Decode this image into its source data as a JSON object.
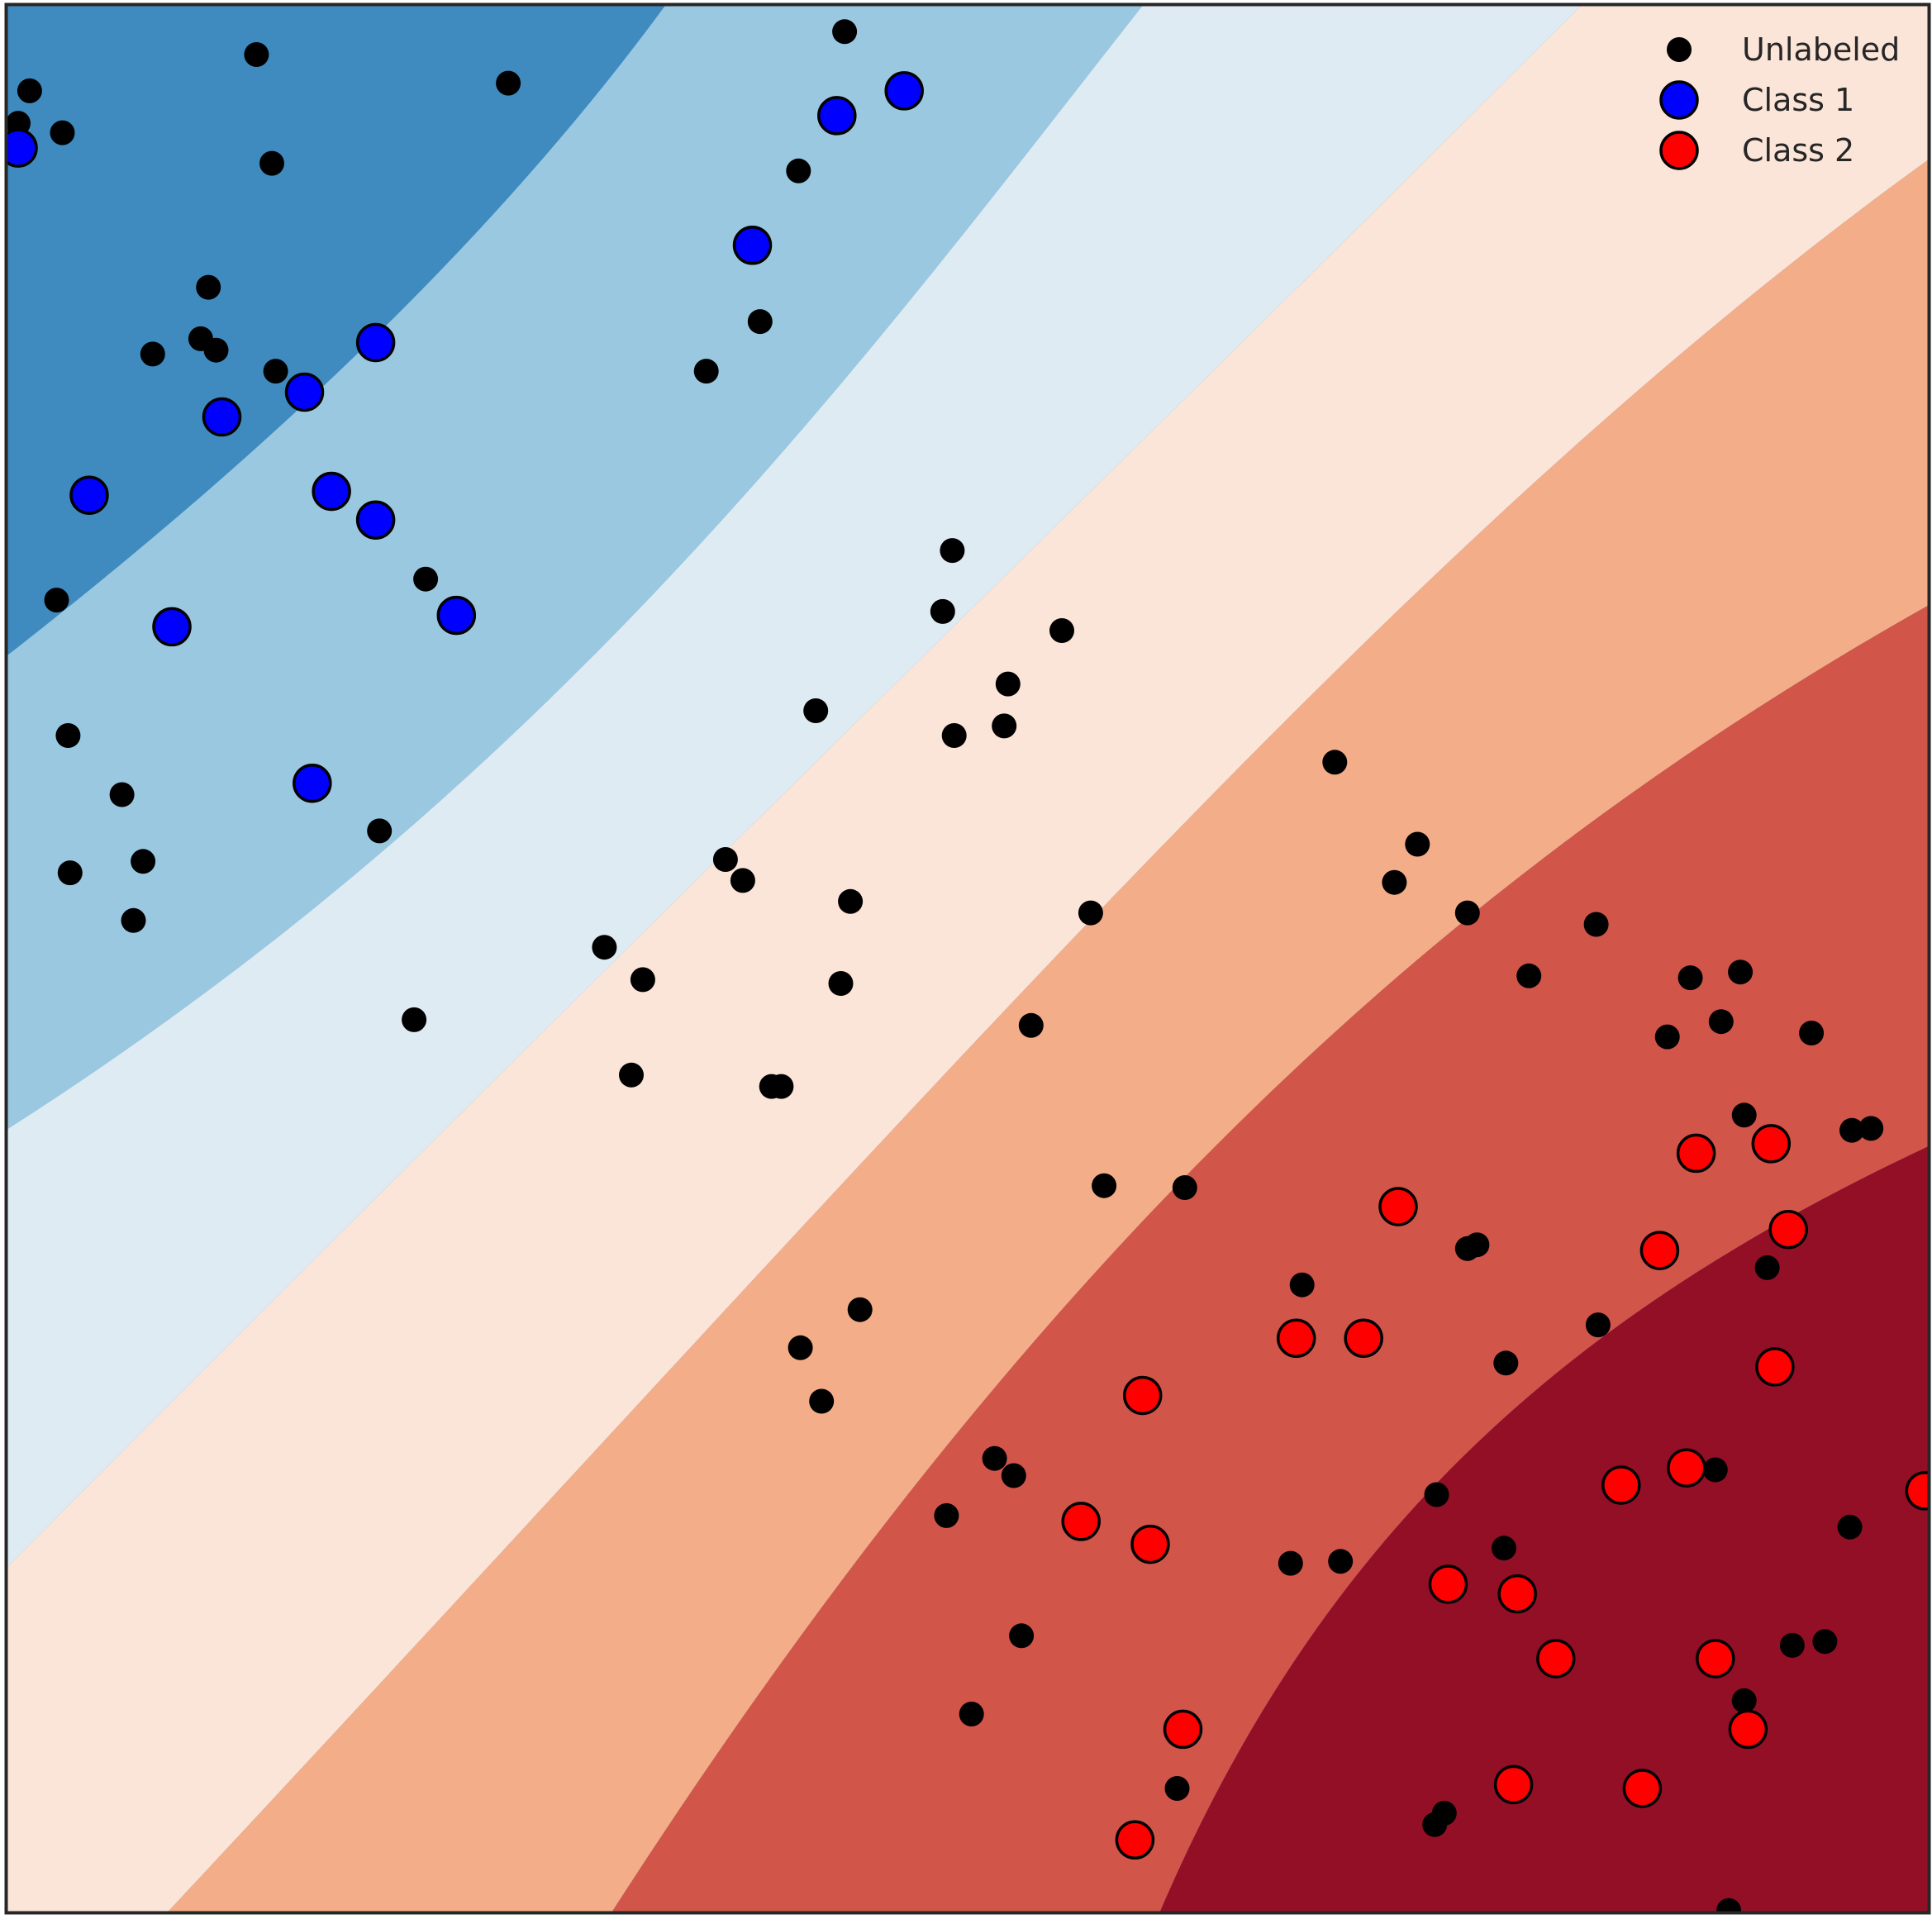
{
  "chart_data": {
    "type": "scatter",
    "title": "",
    "xlabel": "",
    "ylabel": "",
    "xlim": [
      0,
      1
    ],
    "ylim": [
      0,
      1
    ],
    "grid": false,
    "axis_ticks": false,
    "legend": {
      "placement": "top-right",
      "entries": [
        {
          "label": "Unlabeled",
          "series": "unlabeled"
        },
        {
          "label": "Class 1",
          "series": "class1"
        },
        {
          "label": "Class 2",
          "series": "class2"
        }
      ]
    },
    "background": {
      "type": "filled-contour",
      "description_levels": 6,
      "colors": [
        "#3f8bc0",
        "#9ac8e0",
        "#deebf3",
        "#fbe4d8",
        "#f4ad89",
        "#d2554a",
        "#930f26"
      ]
    },
    "series": [
      {
        "key": "unlabeled",
        "name": "Unlabeled",
        "color": "#000000",
        "points": [
          [
            0.436,
            0.986
          ],
          [
            0.13,
            0.974
          ],
          [
            0.261,
            0.959
          ],
          [
            0.012,
            0.955
          ],
          [
            0.006,
            0.938
          ],
          [
            0.029,
            0.933
          ],
          [
            0.138,
            0.917
          ],
          [
            0.412,
            0.913
          ],
          [
            0.105,
            0.852
          ],
          [
            0.392,
            0.834
          ],
          [
            0.101,
            0.825
          ],
          [
            0.109,
            0.819
          ],
          [
            0.076,
            0.817
          ],
          [
            0.14,
            0.808
          ],
          [
            0.364,
            0.808
          ],
          [
            0.492,
            0.714
          ],
          [
            0.218,
            0.699
          ],
          [
            0.026,
            0.688
          ],
          [
            0.487,
            0.682
          ],
          [
            0.549,
            0.672
          ],
          [
            0.521,
            0.644
          ],
          [
            0.421,
            0.63
          ],
          [
            0.493,
            0.617
          ],
          [
            0.032,
            0.617
          ],
          [
            0.519,
            0.622
          ],
          [
            0.06,
            0.586
          ],
          [
            0.194,
            0.567
          ],
          [
            0.071,
            0.551
          ],
          [
            0.033,
            0.545
          ],
          [
            0.374,
            0.552
          ],
          [
            0.383,
            0.541
          ],
          [
            0.439,
            0.53
          ],
          [
            0.066,
            0.52
          ],
          [
            0.691,
            0.603
          ],
          [
            0.734,
            0.56
          ],
          [
            0.722,
            0.54
          ],
          [
            0.564,
            0.524
          ],
          [
            0.76,
            0.524
          ],
          [
            0.827,
            0.518
          ],
          [
            0.311,
            0.506
          ],
          [
            0.331,
            0.489
          ],
          [
            0.434,
            0.487
          ],
          [
            0.212,
            0.468
          ],
          [
            0.792,
            0.491
          ],
          [
            0.876,
            0.49
          ],
          [
            0.902,
            0.493
          ],
          [
            0.864,
            0.459
          ],
          [
            0.892,
            0.467
          ],
          [
            0.939,
            0.461
          ],
          [
            0.533,
            0.465
          ],
          [
            0.325,
            0.439
          ],
          [
            0.398,
            0.433
          ],
          [
            0.403,
            0.433
          ],
          [
            0.904,
            0.418
          ],
          [
            0.96,
            0.41
          ],
          [
            0.97,
            0.411
          ],
          [
            0.571,
            0.381
          ],
          [
            0.613,
            0.38
          ],
          [
            0.76,
            0.348
          ],
          [
            0.765,
            0.35
          ],
          [
            0.674,
            0.329
          ],
          [
            0.916,
            0.338
          ],
          [
            0.444,
            0.316
          ],
          [
            0.828,
            0.308
          ],
          [
            0.413,
            0.296
          ],
          [
            0.78,
            0.288
          ],
          [
            0.424,
            0.268
          ],
          [
            0.514,
            0.238
          ],
          [
            0.524,
            0.229
          ],
          [
            0.889,
            0.232
          ],
          [
            0.744,
            0.219
          ],
          [
            0.489,
            0.208
          ],
          [
            0.959,
            0.202
          ],
          [
            0.779,
            0.191
          ],
          [
            0.668,
            0.183
          ],
          [
            0.694,
            0.184
          ],
          [
            0.528,
            0.145
          ],
          [
            0.929,
            0.14
          ],
          [
            0.946,
            0.142
          ],
          [
            0.904,
            0.111
          ],
          [
            0.502,
            0.104
          ],
          [
            0.609,
            0.065
          ],
          [
            0.748,
            0.052
          ],
          [
            0.743,
            0.046
          ],
          [
            0.896,
            0.001
          ]
        ]
      },
      {
        "key": "class1",
        "name": "Class 1",
        "color": "#0000ff",
        "points": [
          [
            0.467,
            0.955
          ],
          [
            0.432,
            0.942
          ],
          [
            0.388,
            0.874
          ],
          [
            0.006,
            0.925
          ],
          [
            0.192,
            0.823
          ],
          [
            0.155,
            0.797
          ],
          [
            0.112,
            0.784
          ],
          [
            0.043,
            0.743
          ],
          [
            0.169,
            0.745
          ],
          [
            0.192,
            0.73
          ],
          [
            0.234,
            0.68
          ],
          [
            0.086,
            0.674
          ],
          [
            0.159,
            0.592
          ]
        ]
      },
      {
        "key": "class2",
        "name": "Class 2",
        "color": "#ff0000",
        "points": [
          [
            0.879,
            0.398
          ],
          [
            0.918,
            0.403
          ],
          [
            0.724,
            0.37
          ],
          [
            0.86,
            0.347
          ],
          [
            0.927,
            0.358
          ],
          [
            0.671,
            0.301
          ],
          [
            0.706,
            0.301
          ],
          [
            0.92,
            0.286
          ],
          [
            0.591,
            0.271
          ],
          [
            0.84,
            0.224
          ],
          [
            0.874,
            0.233
          ],
          [
            0.998,
            0.221
          ],
          [
            0.559,
            0.205
          ],
          [
            0.595,
            0.193
          ],
          [
            0.75,
            0.172
          ],
          [
            0.786,
            0.167
          ],
          [
            0.806,
            0.133
          ],
          [
            0.889,
            0.133
          ],
          [
            0.612,
            0.096
          ],
          [
            0.906,
            0.096
          ],
          [
            0.784,
            0.067
          ],
          [
            0.851,
            0.065
          ],
          [
            0.587,
            0.038
          ]
        ]
      }
    ]
  }
}
